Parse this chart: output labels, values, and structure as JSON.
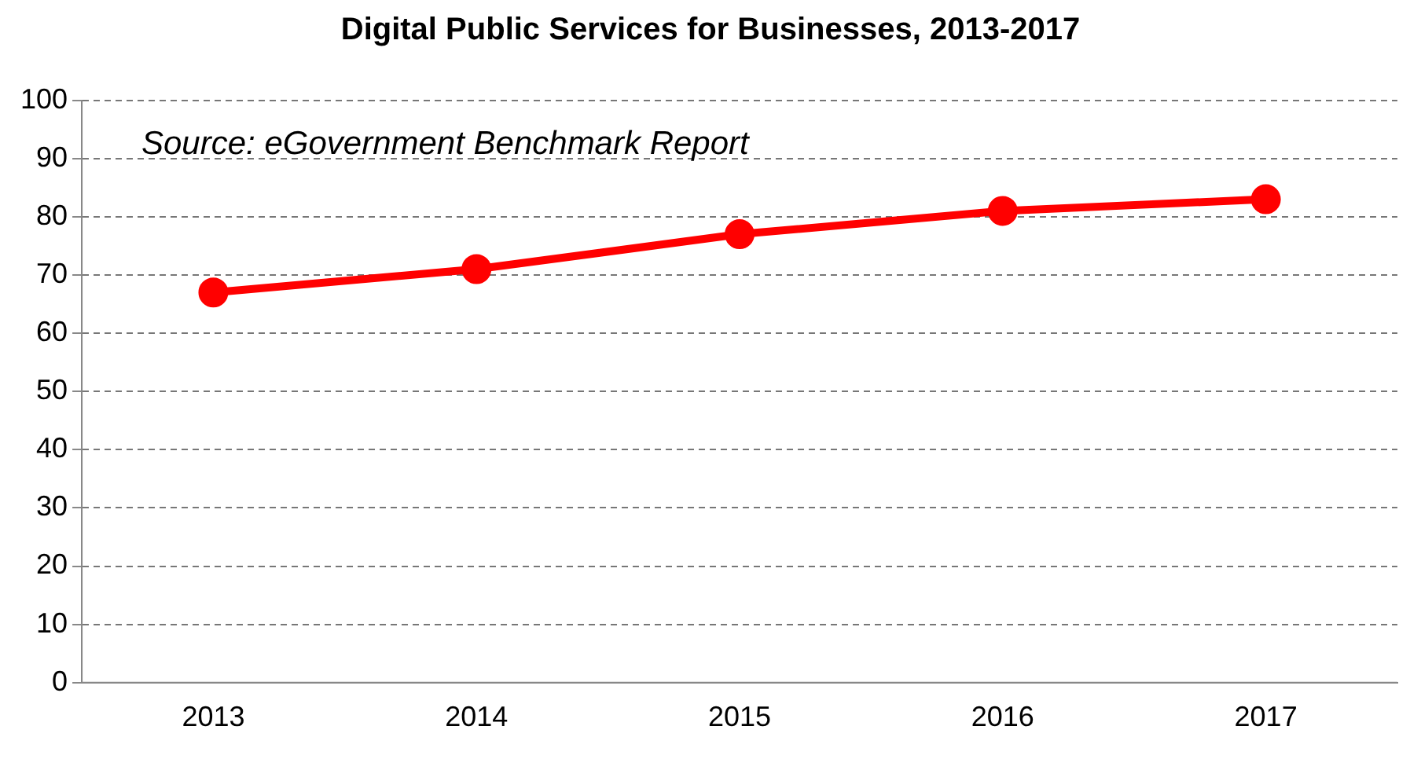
{
  "chart_data": {
    "type": "line",
    "title": "Digital Public Services for Businesses, 2013-2017",
    "categories": [
      "2013",
      "2014",
      "2015",
      "2016",
      "2017"
    ],
    "series": [
      {
        "color": "#ff0000",
        "values": [
          67,
          71,
          77,
          81,
          83
        ]
      }
    ],
    "ylim": [
      0,
      100
    ],
    "yticks": [
      0,
      10,
      20,
      30,
      40,
      50,
      60,
      70,
      80,
      90,
      100
    ],
    "grid": "y",
    "legend": false,
    "marker": "circle",
    "line_style": "solid",
    "annotations": [
      "Source: eGovernment Benchmark Report"
    ]
  }
}
